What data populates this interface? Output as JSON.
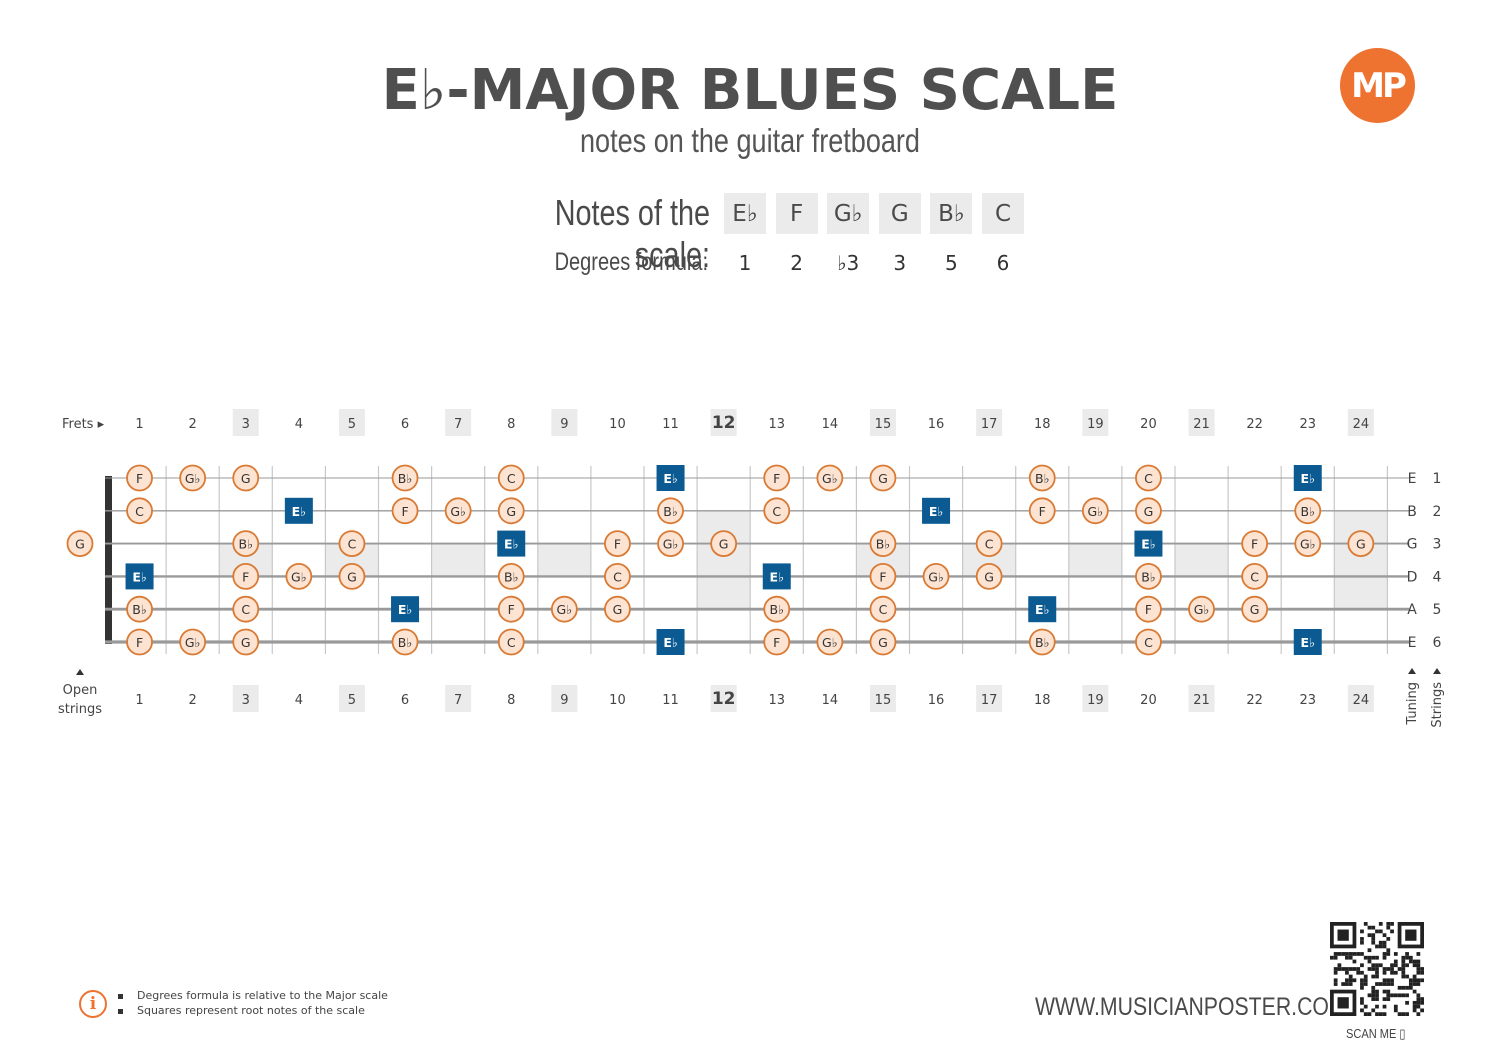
{
  "header": {
    "title": "E♭-MAJOR BLUES SCALE",
    "subtitle": "notes on the guitar fretboard",
    "logo_text": "MP"
  },
  "scale": {
    "notes_label": "Notes of the scale:",
    "degrees_label": "Degrees formula:",
    "notes": [
      "E♭",
      "F",
      "G♭",
      "G",
      "B♭",
      "C"
    ],
    "degrees": [
      "1",
      "2",
      "♭3",
      "3",
      "5",
      "6"
    ]
  },
  "fretboard": {
    "frets_label": "Frets ▸",
    "open_label_line1": "Open",
    "open_label_line2": "strings",
    "tuning_label": "Tuning",
    "strings_label": "Strings",
    "fret_numbers": [
      "1",
      "2",
      "3",
      "4",
      "5",
      "6",
      "7",
      "8",
      "9",
      "10",
      "11",
      "12",
      "13",
      "14",
      "15",
      "16",
      "17",
      "18",
      "19",
      "20",
      "21",
      "22",
      "23",
      "24"
    ],
    "highlighted_frets": [
      3,
      5,
      7,
      9,
      12,
      15,
      17,
      19,
      21,
      24
    ],
    "double_marker_frets": [
      12,
      24
    ],
    "strings": [
      {
        "tuning": "E",
        "number": "1",
        "open": "",
        "notes": [
          "F",
          "G♭",
          "G",
          "",
          "",
          "B♭",
          "",
          "C",
          "",
          "",
          "E♭",
          "",
          "F",
          "G♭",
          "G",
          "",
          "",
          "B♭",
          "",
          "C",
          "",
          "",
          "E♭",
          ""
        ]
      },
      {
        "tuning": "B",
        "number": "2",
        "open": "",
        "notes": [
          "C",
          "",
          "",
          "E♭",
          "",
          "F",
          "G♭",
          "G",
          "",
          "",
          "B♭",
          "",
          "C",
          "",
          "",
          "E♭",
          "",
          "F",
          "G♭",
          "G",
          "",
          "",
          "B♭",
          ""
        ]
      },
      {
        "tuning": "G",
        "number": "3",
        "open": "G",
        "notes": [
          "",
          "",
          "B♭",
          "",
          "C",
          "",
          "",
          "E♭",
          "",
          "F",
          "G♭",
          "G",
          "",
          "",
          "B♭",
          "",
          "C",
          "",
          "",
          "E♭",
          "",
          "F",
          "G♭",
          "G"
        ]
      },
      {
        "tuning": "D",
        "number": "4",
        "open": "",
        "notes": [
          "E♭",
          "",
          "F",
          "G♭",
          "G",
          "",
          "",
          "B♭",
          "",
          "C",
          "",
          "",
          "E♭",
          "",
          "F",
          "G♭",
          "G",
          "",
          "",
          "B♭",
          "",
          "C",
          "",
          ""
        ]
      },
      {
        "tuning": "A",
        "number": "5",
        "open": "",
        "notes": [
          "B♭",
          "",
          "C",
          "",
          "",
          "E♭",
          "",
          "F",
          "G♭",
          "G",
          "",
          "",
          "B♭",
          "",
          "C",
          "",
          "",
          "E♭",
          "",
          "F",
          "G♭",
          "G",
          "",
          ""
        ]
      },
      {
        "tuning": "E",
        "number": "6",
        "open": "",
        "notes": [
          "F",
          "G♭",
          "G",
          "",
          "",
          "B♭",
          "",
          "C",
          "",
          "",
          "E♭",
          "",
          "F",
          "G♭",
          "G",
          "",
          "",
          "B♭",
          "",
          "C",
          "",
          "",
          "E♭",
          ""
        ]
      }
    ],
    "root_note": "E♭",
    "colors": {
      "circle_fill": "#fde3d2",
      "circle_stroke": "#d97a34",
      "root_fill": "#0b5a92",
      "marker_bg": "#ebebeb",
      "string": "#9a9a9a",
      "fret": "#c8c8c8",
      "nut": "#333333"
    }
  },
  "footer": {
    "note1": "Degrees formula is relative to the Major scale",
    "note2": "Squares represent root notes of the scale",
    "website": "WWW.MUSICIANPOSTER.COM",
    "scan": "SCAN ME ▯"
  }
}
